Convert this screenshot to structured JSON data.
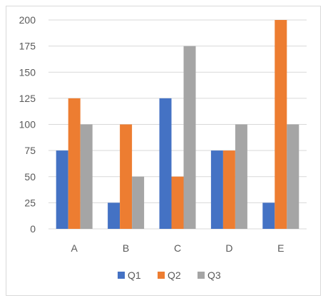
{
  "chart_data": {
    "type": "bar",
    "categories": [
      "A",
      "B",
      "C",
      "D",
      "E"
    ],
    "series": [
      {
        "name": "Q1",
        "values": [
          75,
          25,
          125,
          75,
          25
        ],
        "color": "#4472c4"
      },
      {
        "name": "Q2",
        "values": [
          125,
          100,
          50,
          75,
          200
        ],
        "color": "#ed7d31"
      },
      {
        "name": "Q3",
        "values": [
          100,
          50,
          175,
          100,
          100
        ],
        "color": "#a5a5a5"
      }
    ],
    "title": "",
    "xlabel": "",
    "ylabel": "",
    "ylim": [
      0,
      200
    ],
    "yticks": [
      "0",
      "25",
      "50",
      "75",
      "100",
      "125",
      "150",
      "175",
      "200"
    ],
    "grid": true,
    "gridline_color": "#d9d9d9",
    "legend_position": "bottom"
  }
}
